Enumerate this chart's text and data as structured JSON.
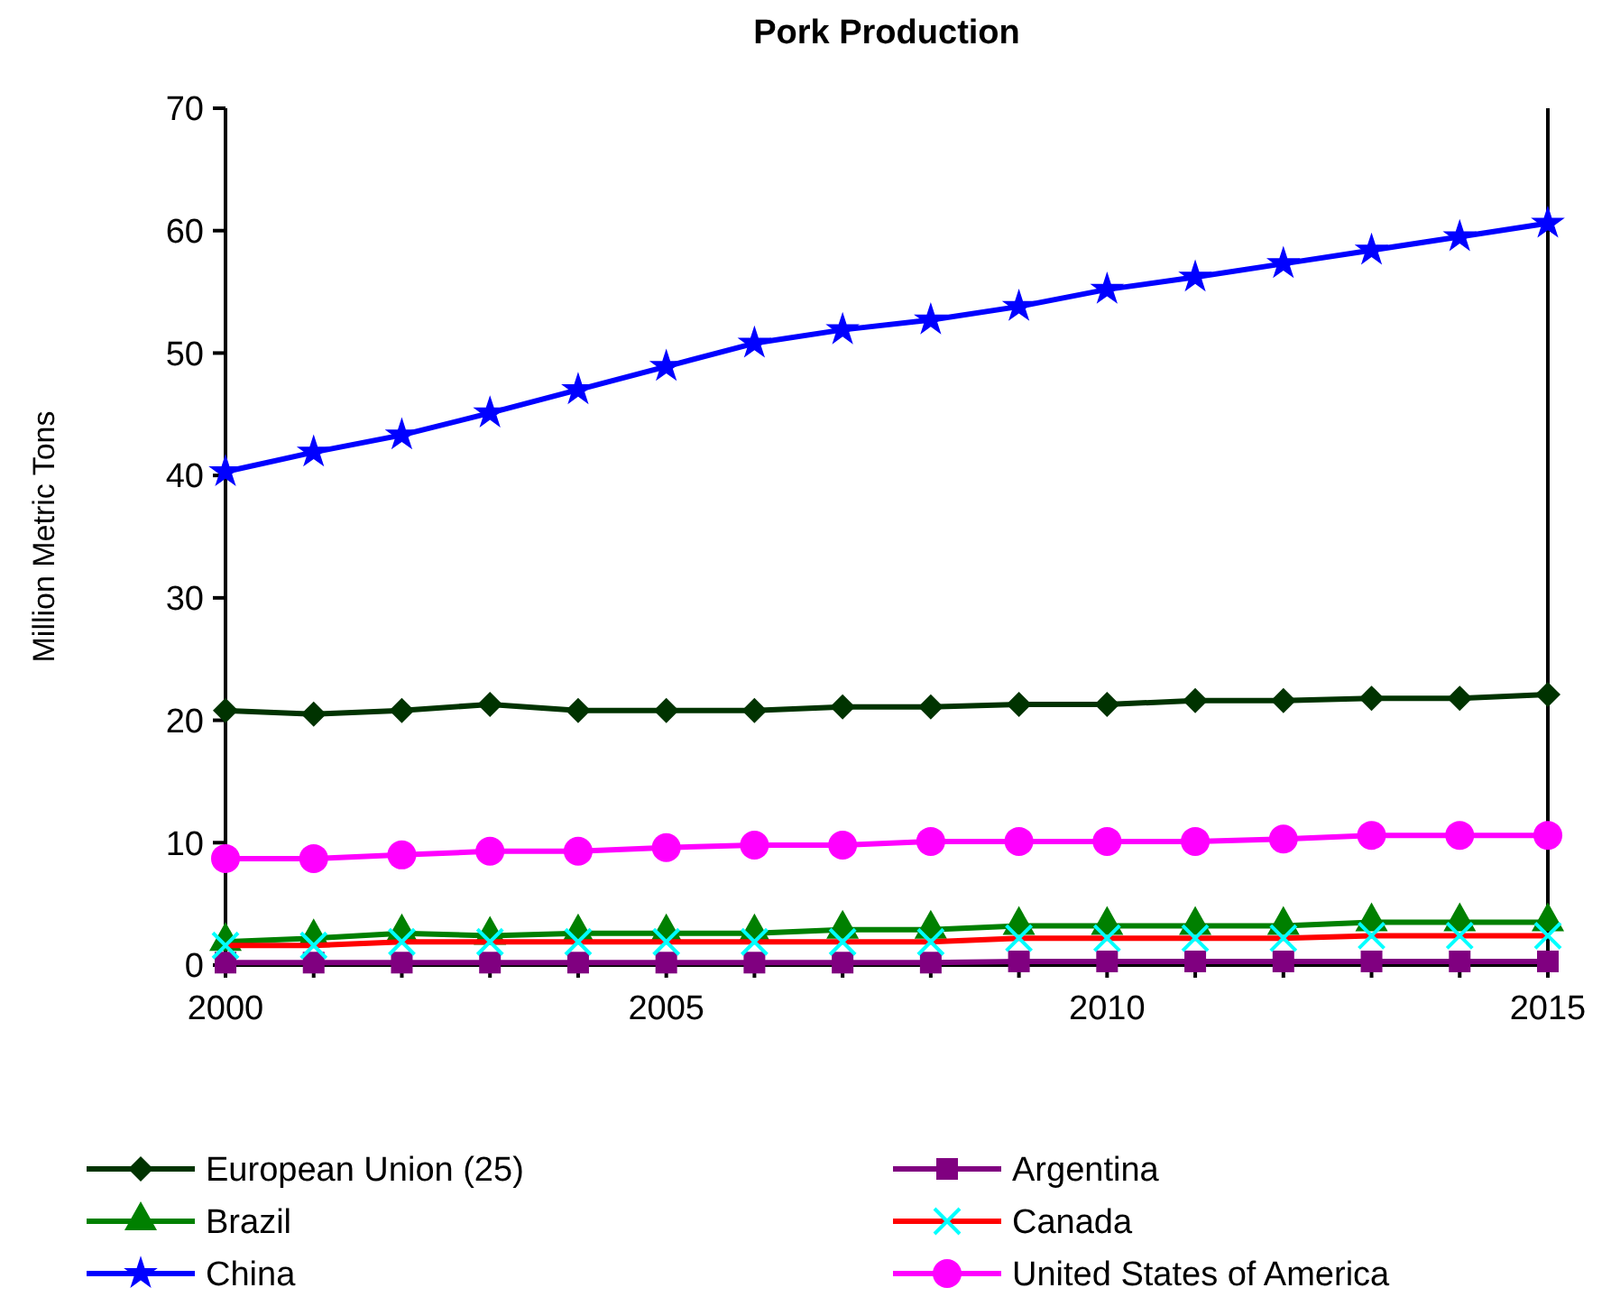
{
  "chart_data": {
    "type": "line",
    "title": "Pork Production",
    "ylabel": "Million Metric Tons",
    "x": [
      2000,
      2001,
      2002,
      2003,
      2004,
      2005,
      2006,
      2007,
      2008,
      2009,
      2010,
      2011,
      2012,
      2013,
      2014,
      2015
    ],
    "xlim": [
      2000,
      2015
    ],
    "xticks": [
      2000,
      {
        "value": 2001,
        "label": null
      },
      {
        "value": 2002,
        "label": null
      },
      {
        "value": 2003,
        "label": null
      },
      {
        "value": 2004,
        "label": null
      },
      2005,
      {
        "value": 2006,
        "label": null
      },
      {
        "value": 2007,
        "label": null
      },
      {
        "value": 2008,
        "label": null
      },
      {
        "value": 2009,
        "label": null
      },
      2010,
      {
        "value": 2011,
        "label": null
      },
      {
        "value": 2012,
        "label": null
      },
      {
        "value": 2013,
        "label": null
      },
      {
        "value": 2014,
        "label": null
      },
      2015
    ],
    "ylim": [
      0,
      70
    ],
    "yticks": [
      0,
      10,
      20,
      30,
      40,
      50,
      60,
      70
    ],
    "grid": false,
    "legend": "bottom",
    "series": [
      {
        "name": "European Union (25)",
        "color": "#003300",
        "marker": "diamond",
        "values": [
          20.8,
          20.5,
          20.8,
          21.3,
          20.8,
          20.8,
          20.8,
          21.1,
          21.1,
          21.3,
          21.3,
          21.6,
          21.6,
          21.8,
          21.8,
          22.1
        ]
      },
      {
        "name": "Argentina",
        "color": "#800080",
        "marker": "square",
        "values": [
          0.2,
          0.2,
          0.2,
          0.2,
          0.2,
          0.2,
          0.2,
          0.2,
          0.2,
          0.3,
          0.3,
          0.3,
          0.3,
          0.3,
          0.3,
          0.3
        ]
      },
      {
        "name": "Brazil",
        "color": "#008000",
        "marker": "triangle",
        "values": [
          1.9,
          2.2,
          2.6,
          2.4,
          2.6,
          2.6,
          2.6,
          2.9,
          2.9,
          3.2,
          3.2,
          3.2,
          3.2,
          3.5,
          3.5,
          3.5
        ]
      },
      {
        "name": "Canada",
        "color": "#ff0000",
        "marker": "cross",
        "colors": [
          "#00ffff",
          "#00ffff",
          "#00ffff",
          "#00ffff",
          "#00ffff",
          "#00ffff",
          "#00ffff",
          "#00ffff",
          "#00ffff",
          "#00ffff",
          "#00ffff",
          "#00ffff",
          "#00ffff",
          "#00ffff",
          "#00ffff",
          "#00ffff"
        ],
        "values": [
          1.6,
          1.6,
          1.9,
          1.9,
          1.9,
          1.9,
          1.9,
          1.9,
          1.9,
          2.2,
          2.2,
          2.2,
          2.2,
          2.4,
          2.4,
          2.4
        ]
      },
      {
        "name": "China",
        "color": "#0000ff",
        "marker": "star",
        "values": [
          40.3,
          41.9,
          43.3,
          45.1,
          47.0,
          48.9,
          50.8,
          51.9,
          52.7,
          53.8,
          55.2,
          56.2,
          57.3,
          58.4,
          59.5,
          60.6
        ]
      },
      {
        "name": "United States of America",
        "color": "#ff00ff",
        "marker": "circle",
        "values": [
          8.7,
          8.7,
          9.0,
          9.3,
          9.3,
          9.6,
          9.8,
          9.8,
          10.1,
          10.1,
          10.1,
          10.1,
          10.3,
          10.6,
          10.6,
          10.6
        ]
      }
    ]
  }
}
